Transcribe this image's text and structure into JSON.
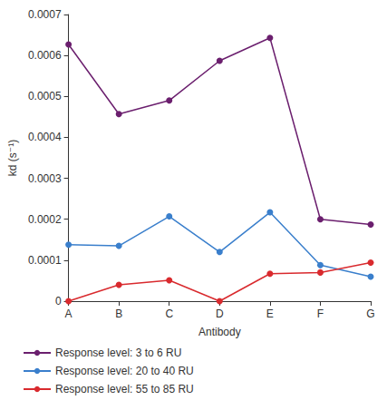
{
  "chart_data": {
    "type": "line",
    "x_label": "Antibody",
    "y_label": "kd (s⁻¹)",
    "categories": [
      "A",
      "B",
      "C",
      "D",
      "E",
      "F",
      "G"
    ],
    "series": [
      {
        "name": "Response level: 3 to 6 RU",
        "color": "#6b1f6e",
        "marker": "circle",
        "values": [
          0.000627,
          0.000457,
          0.00049,
          0.000587,
          0.000643,
          0.0002,
          0.000187
        ]
      },
      {
        "name": "Response level: 20 to 40 RU",
        "color": "#3a7fcc",
        "marker": "circle",
        "values": [
          0.000138,
          0.000135,
          0.000207,
          0.00012,
          0.000217,
          8.8e-05,
          6e-05
        ]
      },
      {
        "name": "Response level: 55 to 85 RU",
        "color": "#d92a2e",
        "marker": "circle",
        "values": [
          0.0,
          4e-05,
          5.1e-05,
          0.0,
          6.7e-05,
          7e-05,
          9.4e-05
        ]
      }
    ],
    "ylim": [
      0,
      0.0007
    ],
    "yticks": [
      0,
      0.0001,
      0.0002,
      0.0003,
      0.0004,
      0.0005,
      0.0006,
      0.0007
    ],
    "grid": false,
    "legend": "bottom"
  }
}
